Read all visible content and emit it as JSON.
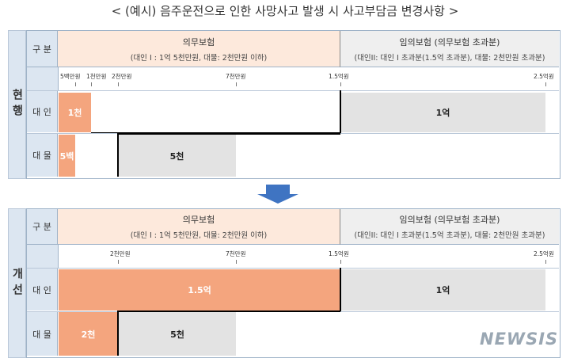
{
  "title": "< (예시) 음주운전으로 인한 사망사고 발생 시 사고부담금 변경사항 >",
  "sections": {
    "current": {
      "label": "현행"
    },
    "improved": {
      "label": "개선"
    }
  },
  "header": {
    "gubun": "구 분",
    "mandatory_title": "의무보험",
    "mandatory_sub": "(대인 I : 1억 5천만원, 대물: 2천만원 이하)",
    "optional_title": "임의보험 (의무보험 초과분)",
    "optional_sub": "(대인II: 대인 I  초과분(1.5억 초과분), 대물: 2천만원 초과분)"
  },
  "scale_current": [
    "5백만원",
    "1천만원",
    "2천만원",
    "7천만원",
    "1.5억원",
    "2.5억원"
  ],
  "scale_improved": [
    "2천만원",
    "7천만원",
    "1.5억원",
    "2.5억원"
  ],
  "rows": {
    "person": "대 인",
    "property": "대 물"
  },
  "current_values": {
    "person_mandatory": "1천",
    "person_optional": "1억",
    "property_small": "5백",
    "property_gray": "5천"
  },
  "improved_values": {
    "person_mandatory": "1.5억",
    "person_optional": "1억",
    "property_orange": "2천",
    "property_gray": "5천"
  },
  "watermark": "NEWSIS",
  "colors": {
    "side": "#dce6f1",
    "mandatory_header": "#fde9dc",
    "orange": "#f4a57e",
    "gray": "#e3e3e3",
    "arrow": "#3f74c2"
  }
}
